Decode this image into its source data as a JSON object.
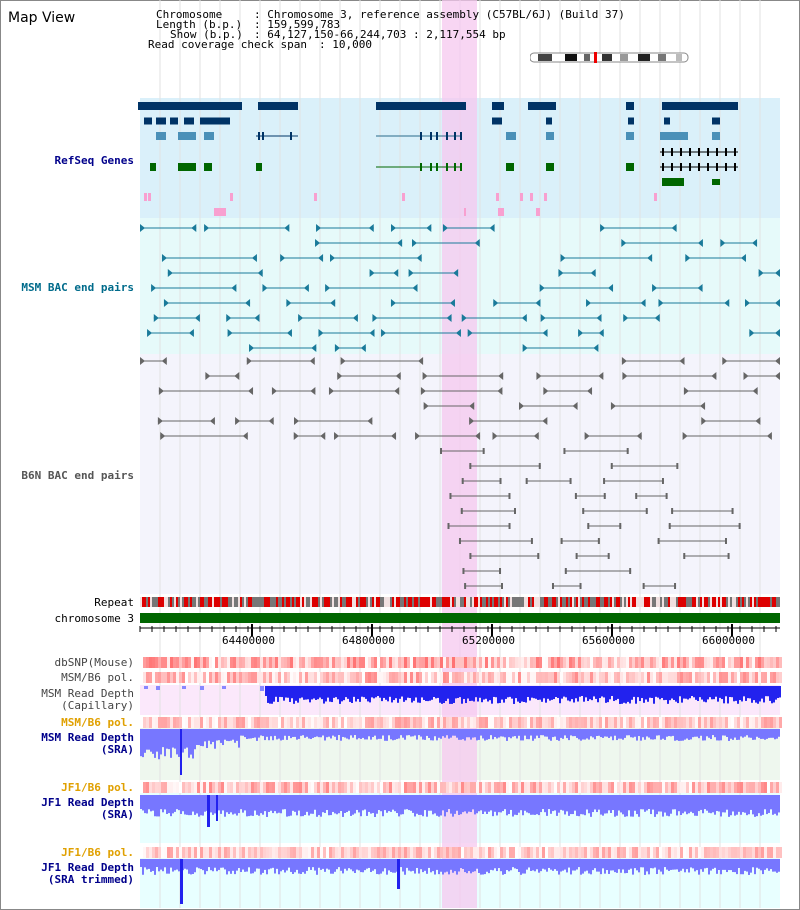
{
  "title": "Map View",
  "info": {
    "chromosome_label": "Chromosome",
    "chromosome_value": "Chromosome 3, reference assembly (C57BL/6J) (Build 37)",
    "length_label": "Length (b.p.)",
    "length_value": "159,599,783",
    "show_label": "Show (b.p.)",
    "show_value": "64,127,150-66,244,703 : 2,117,554 bp",
    "coverage_label": "Read coverage check span",
    "coverage_value": "10,000"
  },
  "tracks": {
    "refseq": "RefSeq Genes",
    "msm_bac": "MSM BAC end pairs",
    "b6n_bac": "B6N BAC end pairs",
    "repeat": "Repeat",
    "chromosome": "chromosome 3",
    "dbsnp": "dbSNP(Mouse)",
    "msm_b6_pol": "MSM/B6 pol.",
    "msm_depth_cap_1": "MSM Read Depth",
    "msm_depth_cap_2": "(Capillary)",
    "msm_b6_pol2": "MSM/B6 pol.",
    "msm_depth_sra_1": "MSM Read Depth",
    "msm_depth_sra_2": "(SRA)",
    "jf1_pol": "JF1/B6 pol.",
    "jf1_depth_1": "JF1 Read Depth",
    "jf1_depth_2": "(SRA)",
    "jf1_pol2": "JF1/B6 pol.",
    "jf1_trim_1": "JF1 Read Depth",
    "jf1_trim_2": "(SRA trimmed)"
  },
  "axis": {
    "ticks": [
      "64400000",
      "64800000",
      "65200000",
      "65600000",
      "66000000"
    ]
  },
  "colors": {
    "refseq_bg": "#daf0fa",
    "msm_bg": "#e6fafa",
    "b6n_bg": "#f4f4fc",
    "highlight": "#f5c8ef",
    "gene_dark": "#003366",
    "gene_mid": "#4a90b8",
    "gene_green": "#006600",
    "bac_teal": "#1a7a9a",
    "bac_gray": "#666666",
    "repeat_red": "#dd0000",
    "chrom_green": "#006600",
    "depth_blue": "#2222ee",
    "depth_light": "#7777ff"
  }
}
